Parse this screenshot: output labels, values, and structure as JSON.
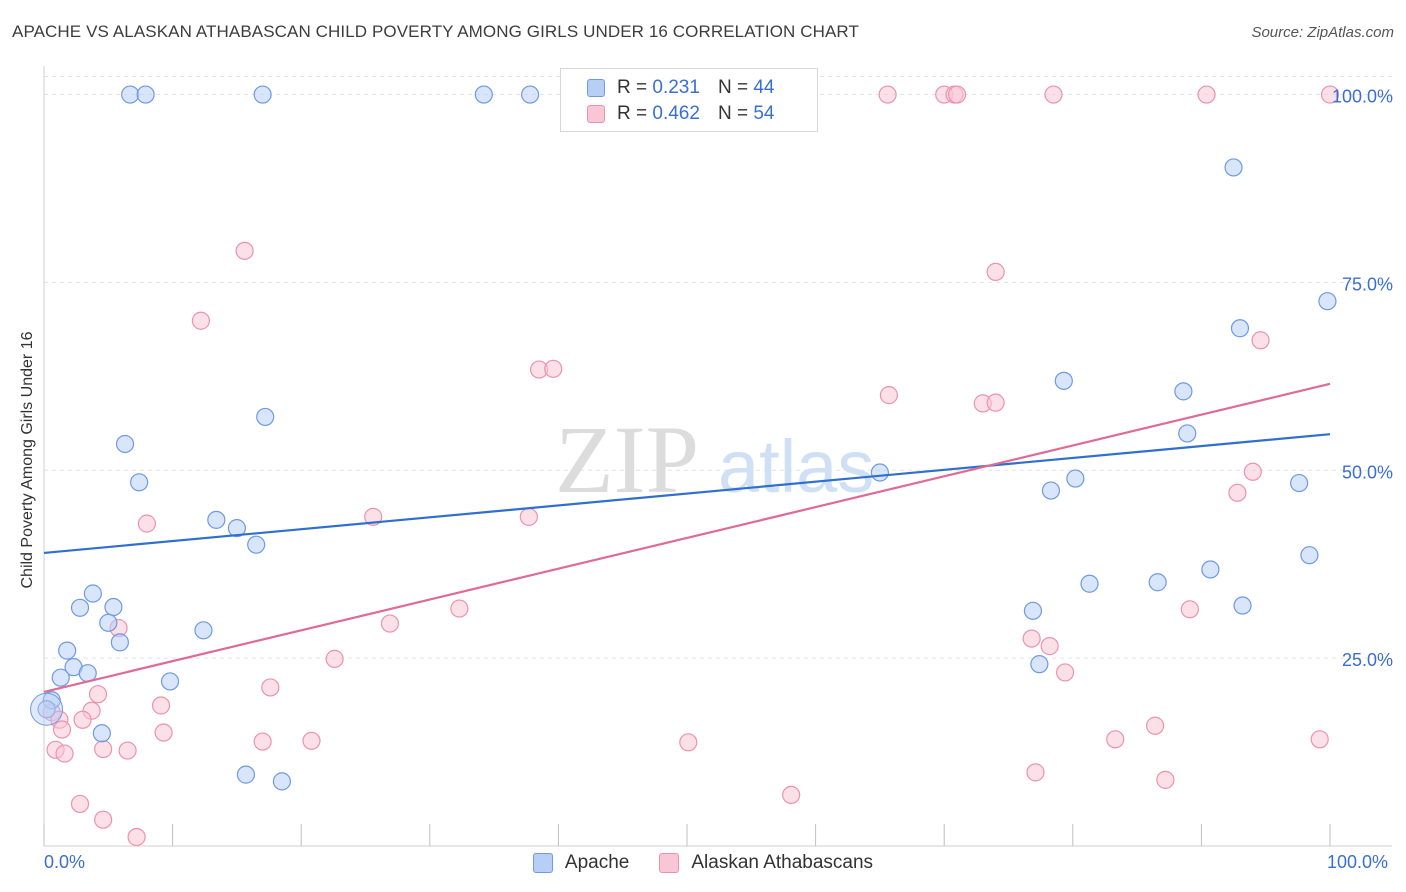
{
  "header": {
    "title": "APACHE VS ALASKAN ATHABASCAN CHILD POVERTY AMONG GIRLS UNDER 16 CORRELATION CHART",
    "source": "Source: ZipAtlas.com"
  },
  "watermark": {
    "zip": "ZIP",
    "atlas": "atlas"
  },
  "legend": {
    "rows": [
      {
        "r_label": "R =",
        "r_value": "0.231",
        "n_label": "N =",
        "n_value": "44"
      },
      {
        "r_label": "R =",
        "r_value": "0.462",
        "n_label": "N =",
        "n_value": "54"
      }
    ]
  },
  "colors": {
    "apache_fill": "#b8cff5",
    "apache_stroke": "#6f9ae0",
    "apache_line": "#2f6fce",
    "athabascan_fill": "#f9c6d5",
    "athabascan_stroke": "#eb93ae",
    "athabascan_line": "#e06a96",
    "tick_label": "#3a6fd1",
    "grid": "#e3e3e3"
  },
  "chart_data": {
    "type": "scatter",
    "title": "APACHE VS ALASKAN ATHABASCAN CHILD POVERTY AMONG GIRLS UNDER 16 CORRELATION CHART",
    "xlabel": "",
    "ylabel": "Child Poverty Among Girls Under 16",
    "xlim": [
      0,
      100
    ],
    "ylim": [
      0,
      103
    ],
    "x_tick_labels": [
      "0.0%",
      "100.0%"
    ],
    "y_ticks": [
      25,
      50,
      75,
      100
    ],
    "y_tick_labels": [
      "25.0%",
      "50.0%",
      "75.0%",
      "100.0%"
    ],
    "grid": true,
    "legend_position": "top-center",
    "series": [
      {
        "name": "Apache",
        "trend": [
          [
            0,
            39
          ],
          [
            100,
            54.8
          ]
        ],
        "points": [
          [
            6.7,
            100
          ],
          [
            7.9,
            100
          ],
          [
            17.0,
            100
          ],
          [
            34.2,
            100
          ],
          [
            37.8,
            100
          ],
          [
            92.5,
            90.3
          ],
          [
            99.8,
            72.5
          ],
          [
            93.0,
            68.9
          ],
          [
            79.3,
            61.9
          ],
          [
            88.6,
            60.5
          ],
          [
            17.2,
            57.1
          ],
          [
            6.3,
            53.5
          ],
          [
            88.9,
            54.9
          ],
          [
            7.4,
            48.4
          ],
          [
            65.0,
            49.7
          ],
          [
            80.2,
            48.9
          ],
          [
            97.6,
            48.3
          ],
          [
            78.3,
            47.3
          ],
          [
            13.4,
            43.4
          ],
          [
            15.0,
            42.3
          ],
          [
            16.5,
            40.1
          ],
          [
            98.4,
            38.7
          ],
          [
            90.7,
            36.8
          ],
          [
            81.3,
            34.9
          ],
          [
            86.6,
            35.1
          ],
          [
            3.8,
            33.6
          ],
          [
            2.8,
            31.7
          ],
          [
            5.4,
            31.8
          ],
          [
            93.2,
            32.0
          ],
          [
            76.9,
            31.3
          ],
          [
            5.0,
            29.7
          ],
          [
            12.4,
            28.7
          ],
          [
            5.9,
            27.1
          ],
          [
            1.8,
            26.0
          ],
          [
            2.3,
            23.8
          ],
          [
            3.4,
            23.0
          ],
          [
            1.3,
            22.4
          ],
          [
            9.8,
            21.9
          ],
          [
            77.4,
            24.2
          ],
          [
            0.6,
            19.4
          ],
          [
            0.2,
            18.2
          ],
          [
            4.5,
            15.0
          ],
          [
            15.7,
            9.5
          ],
          [
            18.5,
            8.6
          ]
        ]
      },
      {
        "name": "Alaskan Athabascans",
        "trend": [
          [
            0,
            20.5
          ],
          [
            100,
            61.5
          ]
        ],
        "points": [
          [
            65.6,
            100
          ],
          [
            70.0,
            100
          ],
          [
            70.8,
            100
          ],
          [
            71.0,
            100
          ],
          [
            78.5,
            100
          ],
          [
            90.4,
            100
          ],
          [
            100.0,
            100
          ],
          [
            15.6,
            79.2
          ],
          [
            74.0,
            76.4
          ],
          [
            12.2,
            69.9
          ],
          [
            94.6,
            67.3
          ],
          [
            38.5,
            63.4
          ],
          [
            39.6,
            63.5
          ],
          [
            65.7,
            60.0
          ],
          [
            73.0,
            58.9
          ],
          [
            74.0,
            59.0
          ],
          [
            94.0,
            49.8
          ],
          [
            92.8,
            47.0
          ],
          [
            25.6,
            43.8
          ],
          [
            37.7,
            43.8
          ],
          [
            8.0,
            42.9
          ],
          [
            32.3,
            31.6
          ],
          [
            89.1,
            31.5
          ],
          [
            26.9,
            29.6
          ],
          [
            5.8,
            29.0
          ],
          [
            76.8,
            27.6
          ],
          [
            78.2,
            26.6
          ],
          [
            22.6,
            24.9
          ],
          [
            79.4,
            23.1
          ],
          [
            17.6,
            21.1
          ],
          [
            4.2,
            20.2
          ],
          [
            9.1,
            18.7
          ],
          [
            3.7,
            18.0
          ],
          [
            0.6,
            17.8
          ],
          [
            1.2,
            16.8
          ],
          [
            3.0,
            16.8
          ],
          [
            1.4,
            15.5
          ],
          [
            9.3,
            15.1
          ],
          [
            86.4,
            16.0
          ],
          [
            17.0,
            13.9
          ],
          [
            20.8,
            14.0
          ],
          [
            50.1,
            13.8
          ],
          [
            83.3,
            14.2
          ],
          [
            99.2,
            14.2
          ],
          [
            0.9,
            12.8
          ],
          [
            1.6,
            12.3
          ],
          [
            4.6,
            12.9
          ],
          [
            6.5,
            12.7
          ],
          [
            77.1,
            9.8
          ],
          [
            87.2,
            8.8
          ],
          [
            58.1,
            6.8
          ],
          [
            2.8,
            5.6
          ],
          [
            4.6,
            3.5
          ],
          [
            7.2,
            1.2
          ]
        ]
      }
    ]
  }
}
